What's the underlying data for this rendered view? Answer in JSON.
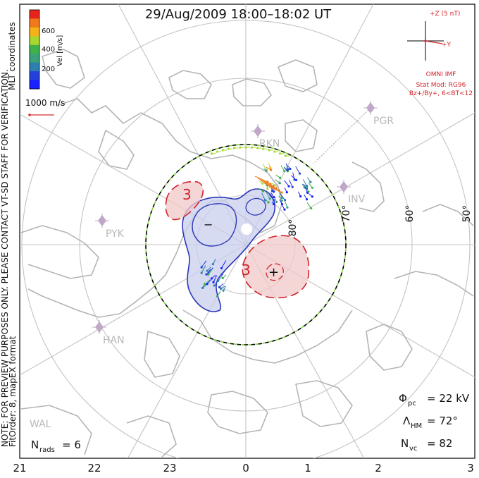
{
  "title": "29/Aug/2009 18:00–18:02 UT",
  "colorbar": {
    "label": "Vel [m/s]",
    "ticks": [
      "600",
      "400",
      "200"
    ],
    "colors": [
      "#e8231c",
      "#f07a1a",
      "#f5b21a",
      "#a8d830",
      "#3fb24a",
      "#3aa27a",
      "#2d7fb0",
      "#2441d9",
      "#1822ff"
    ]
  },
  "coord_label": "MLT coordinates",
  "scale_vector": "1000 m/s",
  "side_note": "NOTE: FOR PREVIEW PURPOSES ONLY. PLEASE CONTACT VT-SD STAFF FOR VERIFICATION.",
  "fit_note": "FitOrder: 8, mapEX format",
  "imf": {
    "z_label": "+Z (5 nT)",
    "y_label": "+Y",
    "source": "OMNI IMF",
    "model_line": "Stat Mod: RG96",
    "condition": "Bz+/By+, 6<BT<12"
  },
  "stations": [
    "RKN",
    "PGR",
    "INV",
    "PYK",
    "HAN",
    "WAL"
  ],
  "lat_labels": [
    "80°",
    "70°",
    "60°",
    "50°"
  ],
  "contour_labels": {
    "neg": "−",
    "pos": "+",
    "pos_val": "3",
    "neg_val": "3"
  },
  "mlt_ticks": [
    "21",
    "22",
    "23",
    "0",
    "1",
    "2",
    "3"
  ],
  "stats": {
    "phi_sym": "Φ",
    "phi_sub": "pc",
    "phi_val": "= 22 kV",
    "lam_sym": "Λ",
    "lam_sub": "HM",
    "lam_val": "= 72°",
    "nvc_sym": "N",
    "nvc_sub": "vc",
    "nvc_val": "= 82",
    "nrads_sym": "N",
    "nrads_sub": "rads",
    "nrads_val": "= 6"
  }
}
